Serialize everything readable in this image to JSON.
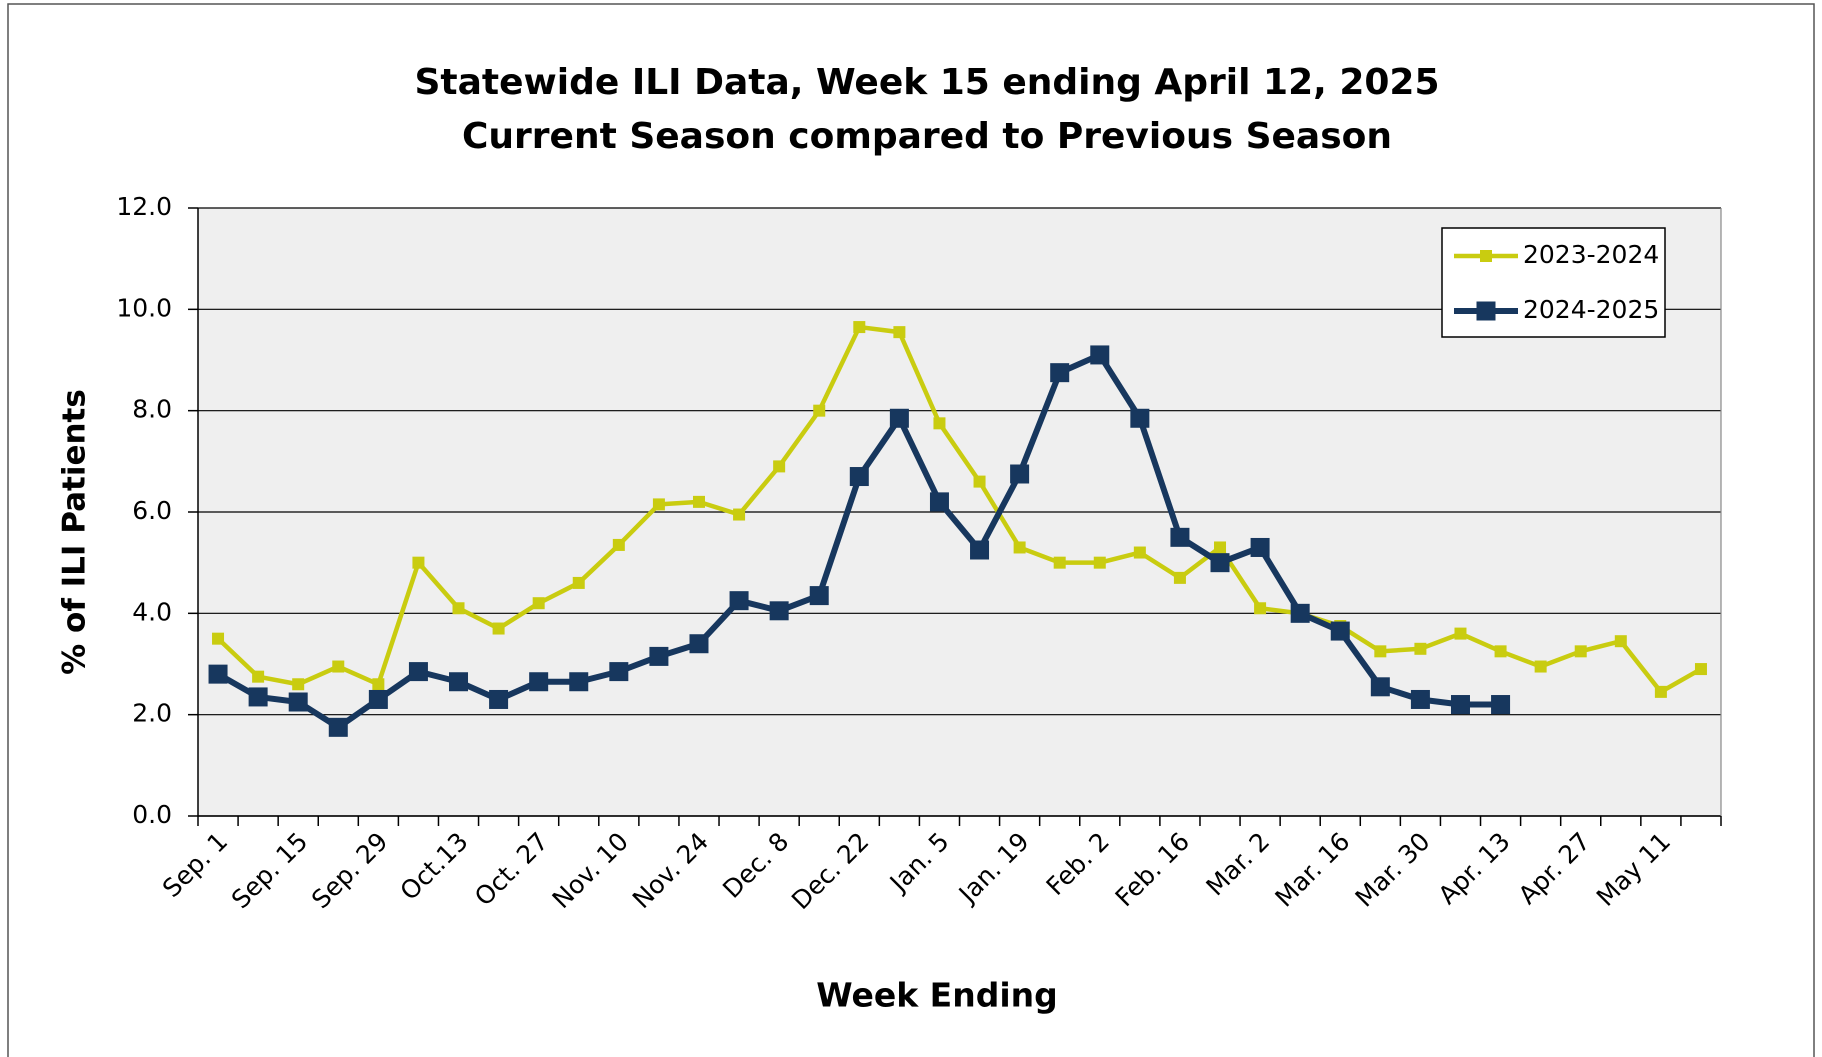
{
  "chart_data": {
    "type": "line",
    "title": "Statewide ILI Data, Week 15 ending April 12, 2025",
    "subtitle": "Current Season compared to Previous Season",
    "x_label": "Week Ending",
    "y_label": "% of ILI Patients",
    "categories": [
      "Sep. 1",
      null,
      "Sep. 15",
      null,
      "Sep. 29",
      null,
      "Oct.13",
      null,
      "Oct. 27",
      null,
      "Nov. 10",
      null,
      "Nov. 24",
      null,
      "Dec. 8",
      null,
      "Dec. 22",
      null,
      "Jan. 5",
      null,
      "Jan. 19",
      null,
      "Feb. 2",
      null,
      "Feb. 16",
      null,
      "Mar. 2",
      null,
      "Mar. 16",
      null,
      "Mar. 30",
      null,
      "Apr. 13",
      null,
      "Apr. 27",
      null,
      "May 11",
      null
    ],
    "series": [
      {
        "name": "2023-2024",
        "color": "#c9cc10",
        "values": [
          3.5,
          2.75,
          2.6,
          2.95,
          2.6,
          5.0,
          4.1,
          3.7,
          4.2,
          4.6,
          5.35,
          6.15,
          6.2,
          5.95,
          6.9,
          8.0,
          9.65,
          9.55,
          7.75,
          6.6,
          5.3,
          5.0,
          5.0,
          5.2,
          4.7,
          5.3,
          4.1,
          4.0,
          3.75,
          3.25,
          3.3,
          3.6,
          3.25,
          2.95,
          3.25,
          3.45,
          2.45,
          2.9
        ]
      },
      {
        "name": "2024-2025",
        "color": "#17375e",
        "values": [
          2.8,
          2.35,
          2.25,
          1.75,
          2.3,
          2.85,
          2.65,
          2.3,
          2.65,
          2.65,
          2.85,
          3.15,
          3.4,
          4.25,
          4.05,
          4.35,
          6.7,
          7.85,
          6.2,
          5.25,
          6.75,
          8.75,
          9.1,
          7.85,
          5.5,
          5.0,
          5.3,
          4.0,
          3.65,
          2.55,
          2.3,
          2.2,
          2.2,
          null,
          null,
          null,
          null,
          null
        ]
      }
    ],
    "ylim": [
      0,
      12
    ],
    "yticks": [
      {
        "value": 0,
        "label": "0.0"
      },
      {
        "value": 2,
        "label": "2.0"
      },
      {
        "value": 4,
        "label": "4.0"
      },
      {
        "value": 6,
        "label": "6.0"
      },
      {
        "value": 8,
        "label": "8.0"
      },
      {
        "value": 10,
        "label": "10.0"
      },
      {
        "value": 12,
        "label": "12.0"
      }
    ],
    "grid": true,
    "legend": "top-right"
  }
}
